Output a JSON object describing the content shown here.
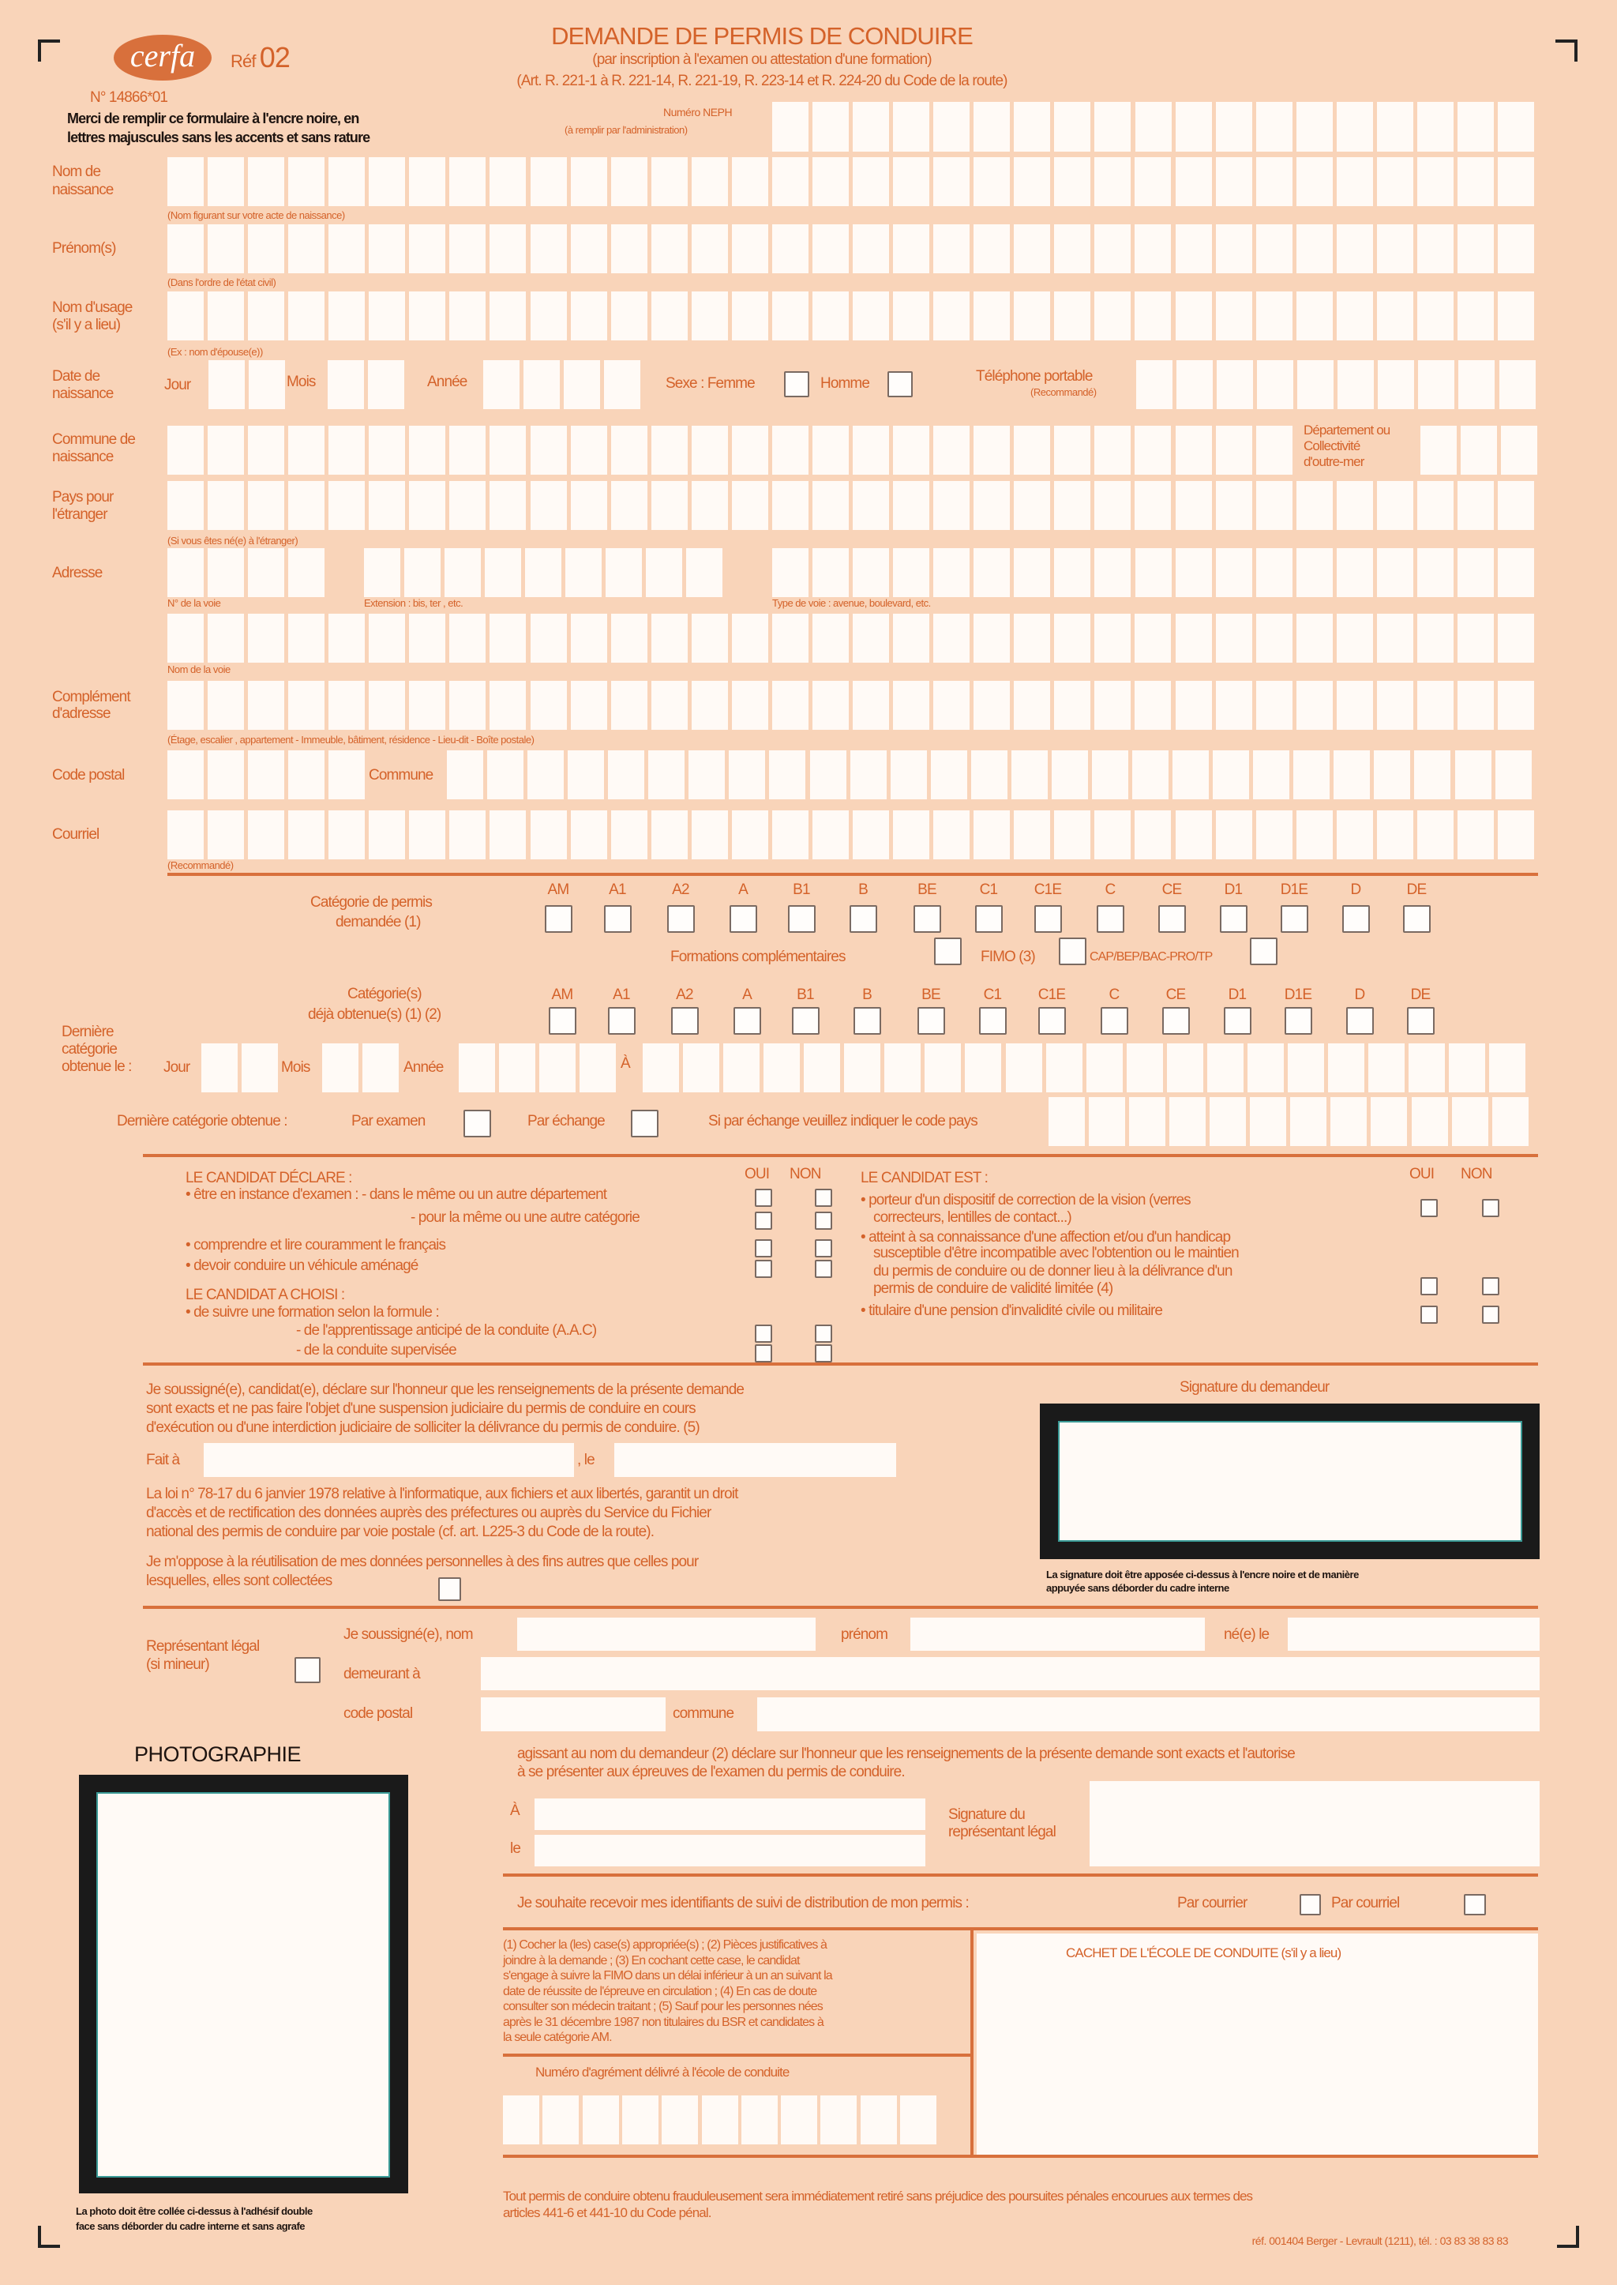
{
  "colors": {
    "background": "#f9d4b9",
    "accent": "#d4622a",
    "line": "#d8703c",
    "box": "#fffaf6"
  },
  "header": {
    "logo": "cerfa",
    "ref_label": "Réf",
    "ref_number": "02",
    "cerfa_number": "N° 14866*01",
    "title": "DEMANDE DE PERMIS DE CONDUIRE",
    "subtitle": "(par inscription à l'examen ou attestation d'une formation)",
    "articles": "(Art. R. 221-1 à R. 221-14, R. 221-19, R. 223-14 et R. 224-20 du Code de la route)",
    "instructions_1": "Merci de remplir ce formulaire à l'encre noire, en",
    "instructions_2": "lettres majuscules sans les accents et sans rature"
  },
  "neph": {
    "label": "Numéro NEPH",
    "hint": "(à remplir par l'administration)"
  },
  "identity": {
    "nom_naissance_1": "Nom de",
    "nom_naissance_2": "naissance",
    "nom_naissance_hint": "(Nom figurant sur votre acte de naissance)",
    "prenoms": "Prénom(s)",
    "prenoms_hint": "(Dans l'ordre de l'état civil)",
    "nom_usage_1": "Nom d'usage",
    "nom_usage_2": "(s'il y a lieu)",
    "nom_usage_hint": "(Ex : nom d'épouse(e))",
    "date_1": "Date de",
    "date_2": "naissance",
    "jour": "Jour",
    "mois": "Mois",
    "annee": "Année",
    "sexe_femme": "Sexe : Femme",
    "homme": "Homme",
    "telephone": "Téléphone portable",
    "telephone_hint": "(Recommandé)",
    "commune_1": "Commune de",
    "commune_2": "naissance",
    "departement_1": "Département ou",
    "departement_2": "Collectivité",
    "departement_3": "d'outre-mer",
    "pays_1": "Pays pour",
    "pays_2": "l'étranger",
    "pays_hint": "(Si vous êtes né(e) à l'étranger)"
  },
  "address": {
    "adresse": "Adresse",
    "num_voie": "N° de la voie",
    "extension": "Extension : bis, ter , etc.",
    "type_voie": "Type de voie : avenue, boulevard, etc.",
    "nom_voie": "Nom de la voie",
    "complement_1": "Complément",
    "complement_2": "d'adresse",
    "complement_hint": "(Étage, escalier , appartement - Immeuble, bâtiment, résidence - Lieu-dit - Boîte postale)",
    "code_postal": "Code postal",
    "commune": "Commune",
    "courriel": "Courriel",
    "courriel_hint": "(Recommandé)"
  },
  "categories": {
    "list": [
      "AM",
      "A1",
      "A2",
      "A",
      "B1",
      "B",
      "BE",
      "C1",
      "C1E",
      "C",
      "CE",
      "D1",
      "D1E",
      "D",
      "DE"
    ],
    "demandee_1": "Catégorie de permis",
    "demandee_2": "demandée   (1)",
    "formations": "Formations complémentaires",
    "fimo": "FIMO (3)",
    "cap": "CAP/BEP/BAC-PRO/TP",
    "obtenue_1": "Catégorie(s)",
    "obtenue_2": "déjà obtenue(s)   (1) (2)",
    "derniere_1": "Dernière",
    "derniere_2": "catégorie",
    "derniere_3": "obtenue le :",
    "jour": "Jour",
    "mois": "Mois",
    "annee": "Année",
    "a": "À",
    "derniere_obtenue": "Dernière catégorie obtenue :",
    "par_examen": "Par examen",
    "par_echange": "Par échange",
    "code_pays": "Si par échange veuillez indiquer le code pays"
  },
  "declaration": {
    "oui": "OUI",
    "non": "NON",
    "declare_title": "LE CANDIDAT DÉCLARE :",
    "declare_items": [
      "• être en instance d'examen :  - dans le même ou un autre département",
      "- pour la même ou une autre catégorie",
      "• comprendre et lire couramment le français",
      "• devoir conduire un véhicule aménagé"
    ],
    "choisi_title": "LE CANDIDAT A CHOISI :",
    "choisi_items": [
      "• de suivre une formation selon la formule :",
      "- de l'apprentissage anticipé de la conduite (A.A.C)",
      "- de la conduite supervisée"
    ],
    "est_title": "LE CANDIDAT EST :",
    "est_items": [
      "• porteur d'un dispositif de correction de la vision (verres",
      "correcteurs, lentilles de contact...)",
      "• atteint à sa connaissance d'une affection et/ou d'un handicap",
      "susceptible d'être incompatible avec l'obtention ou le maintien",
      "du permis de conduire ou de donner lieu à la délivrance d'un",
      "permis de conduire de validité limitée (4)",
      "• titulaire d'une pension d'invalidité civile ou militaire"
    ]
  },
  "sworn": {
    "text": [
      "Je soussigné(e), candidat(e), déclare sur l'honneur que les renseignements de la présente demande",
      "sont exacts  et ne pas faire l'objet d'une suspension judiciaire du permis de conduire en cours",
      "d'exécution ou d'une interdiction judiciaire de solliciter la délivrance du permis de conduire. (5)"
    ],
    "fait_a": "Fait à",
    "le": ", le",
    "loi": [
      "La loi n° 78-17 du 6 janvier 1978 relative à l'informatique, aux fichiers et aux libertés, garantit un droit",
      "d'accès et de rectification des données auprès des préfectures ou auprès du Service du Fichier",
      "national des permis de conduire par voie postale   (cf. art. L225-3 du Code de la route)."
    ],
    "oppose": [
      "Je m'oppose à la réutilisation de mes données personnelles à des fins autres que celles pour",
      "lesquelles, elles sont collectées"
    ],
    "signature_title": "Signature du demandeur",
    "signature_note": [
      "La signature doit être apposée ci-dessus à l'encre noire et de manière",
      "appuyée sans déborder du cadre interne"
    ]
  },
  "legal": {
    "rep_1": "Représentant légal",
    "rep_2": "(si mineur)",
    "nom": "Je soussigné(e), nom",
    "prenom": "prénom",
    "ne_le": "né(e) le",
    "demeurant": "demeurant à",
    "code_postal": "code postal",
    "commune": "commune",
    "agissant": [
      "agissant au nom du demandeur (2) déclare sur l'honneur que les renseignements de la présente demande sont exacts et l'autorise",
      "à se présenter aux épreuves de l'examen du permis de conduire."
    ],
    "a": "À",
    "le": "le",
    "signature_1": "Signature du",
    "signature_2": "représentant légal",
    "suivi": "Je souhaite recevoir mes identifiants de suivi de distribution de mon permis :",
    "par_courrier": "Par courrier",
    "par_courriel": "Par courriel"
  },
  "photo": {
    "title": "PHOTOGRAPHIE",
    "note": [
      "La photo doit être collée ci-dessus  à l'adhésif  double",
      "face sans déborder du cadre interne et sans agrafe"
    ]
  },
  "footnotes": [
    "(1) Cocher la (les) case(s) appropriée(s) ; (2) Pièces justificatives à",
    "joindre à la demande ; (3) En cochant cette case, le candidat",
    "s'engage à suivre la FIMO dans un délai inférieur à un an suivant la",
    "date de réussite de l'épreuve en circulation ; (4) En cas de doute",
    "consulter son médecin traitant ; (5) Sauf pour les personnes nées",
    "après le 31 décembre 1987 non titulaires du BSR et candidates à",
    "la seule catégorie AM."
  ],
  "agrement": "Numéro d'agrément délivré à l'école de conduite",
  "cachet": "CACHET DE L'ÉCOLE DE CONDUITE (s'il y a lieu)",
  "footer": {
    "fraud": [
      "Tout permis de conduire obtenu frauduleusement sera immédiatement retiré sans préjudice des poursuites pénales encourues aux termes des",
      "articles 441-6 et 441-10 du Code pénal."
    ],
    "ref": "réf. 001404  Berger - Levrault  (1211), tél. : 03 83 38 83 83"
  }
}
